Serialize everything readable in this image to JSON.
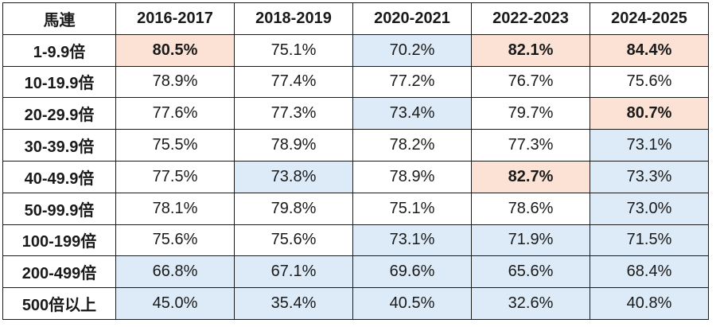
{
  "table": {
    "header": [
      "馬連",
      "2016-2017",
      "2018-2019",
      "2020-2021",
      "2022-2023",
      "2024-2025"
    ],
    "rows": [
      {
        "label": "1-9.9倍",
        "cells": [
          {
            "v": "80.5%",
            "s": "hi"
          },
          {
            "v": "75.1%",
            "s": ""
          },
          {
            "v": "70.2%",
            "s": "lo"
          },
          {
            "v": "82.1%",
            "s": "hi"
          },
          {
            "v": "84.4%",
            "s": "hi"
          }
        ]
      },
      {
        "label": "10-19.9倍",
        "cells": [
          {
            "v": "78.9%",
            "s": ""
          },
          {
            "v": "77.4%",
            "s": ""
          },
          {
            "v": "77.2%",
            "s": ""
          },
          {
            "v": "76.7%",
            "s": ""
          },
          {
            "v": "75.6%",
            "s": ""
          }
        ]
      },
      {
        "label": "20-29.9倍",
        "cells": [
          {
            "v": "77.6%",
            "s": ""
          },
          {
            "v": "77.3%",
            "s": ""
          },
          {
            "v": "73.4%",
            "s": "lo"
          },
          {
            "v": "79.7%",
            "s": ""
          },
          {
            "v": "80.7%",
            "s": "hi"
          }
        ]
      },
      {
        "label": "30-39.9倍",
        "cells": [
          {
            "v": "75.5%",
            "s": ""
          },
          {
            "v": "78.9%",
            "s": ""
          },
          {
            "v": "78.2%",
            "s": ""
          },
          {
            "v": "77.3%",
            "s": ""
          },
          {
            "v": "73.1%",
            "s": "lo"
          }
        ]
      },
      {
        "label": "40-49.9倍",
        "cells": [
          {
            "v": "77.5%",
            "s": ""
          },
          {
            "v": "73.8%",
            "s": "lo"
          },
          {
            "v": "78.9%",
            "s": ""
          },
          {
            "v": "82.7%",
            "s": "hi"
          },
          {
            "v": "73.3%",
            "s": "lo"
          }
        ]
      },
      {
        "label": "50-99.9倍",
        "cells": [
          {
            "v": "78.1%",
            "s": ""
          },
          {
            "v": "79.8%",
            "s": ""
          },
          {
            "v": "75.1%",
            "s": ""
          },
          {
            "v": "78.6%",
            "s": ""
          },
          {
            "v": "73.0%",
            "s": "lo"
          }
        ]
      },
      {
        "label": "100-199倍",
        "cells": [
          {
            "v": "75.6%",
            "s": ""
          },
          {
            "v": "75.6%",
            "s": ""
          },
          {
            "v": "73.1%",
            "s": "lo"
          },
          {
            "v": "71.9%",
            "s": "lo"
          },
          {
            "v": "71.5%",
            "s": "lo"
          }
        ]
      },
      {
        "label": "200-499倍",
        "cells": [
          {
            "v": "66.8%",
            "s": "lo"
          },
          {
            "v": "67.1%",
            "s": "lo"
          },
          {
            "v": "69.6%",
            "s": "lo"
          },
          {
            "v": "65.6%",
            "s": "lo"
          },
          {
            "v": "68.4%",
            "s": "lo"
          }
        ]
      },
      {
        "label": "500倍以上",
        "cells": [
          {
            "v": "45.0%",
            "s": "lo"
          },
          {
            "v": "35.4%",
            "s": "lo"
          },
          {
            "v": "40.5%",
            "s": "lo"
          },
          {
            "v": "32.6%",
            "s": "lo"
          },
          {
            "v": "40.8%",
            "s": "lo"
          }
        ]
      }
    ],
    "colors": {
      "highlight_high": "#fbe2d5",
      "highlight_low": "#dcebf7",
      "border": "#1a1a1a"
    }
  }
}
